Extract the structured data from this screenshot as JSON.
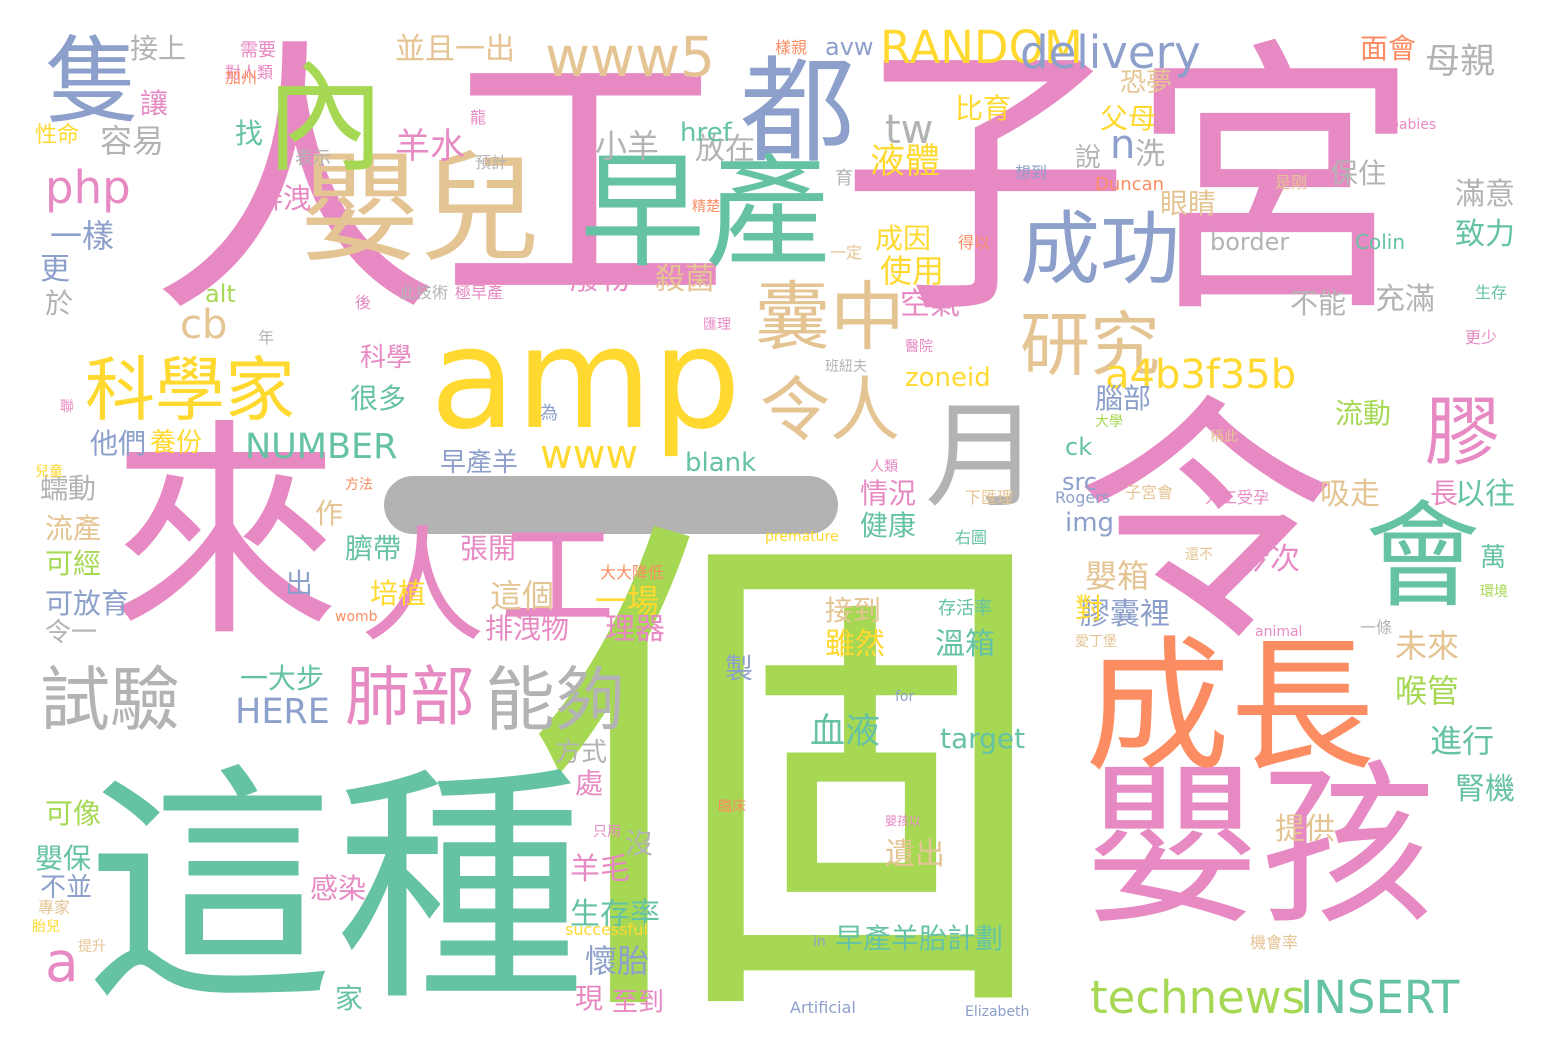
{
  "palette": {
    "pink": "#e78ac3",
    "green": "#a6d854",
    "teal": "#66c2a5",
    "yellow": "#ffd92f",
    "tan": "#e5c494",
    "orange": "#fc8d62",
    "blue": "#8da0cb",
    "gray": "#b3b3b3"
  },
  "dash_color": "#b3b3b3",
  "words": [
    {
      "text": "人工",
      "c": "pink"
    },
    {
      "text": "子宮",
      "c": "pink"
    },
    {
      "text": "來",
      "c": "pink"
    },
    {
      "text": "令",
      "c": "pink"
    },
    {
      "text": "個",
      "c": "green"
    },
    {
      "text": "這種",
      "c": "teal"
    },
    {
      "text": "嬰孩",
      "c": "pink"
    },
    {
      "text": "成長",
      "c": "orange"
    },
    {
      "text": "早產",
      "c": "teal"
    },
    {
      "text": "嬰兒",
      "c": "tan"
    },
    {
      "text": "amp",
      "c": "yellow"
    },
    {
      "text": "內",
      "c": "green"
    },
    {
      "text": "都",
      "c": "blue"
    },
    {
      "text": "隻",
      "c": "blue"
    },
    {
      "text": "人",
      "c": "pink"
    },
    {
      "text": "工",
      "c": "pink"
    },
    {
      "text": "月",
      "c": "gray"
    },
    {
      "text": "會",
      "c": "teal"
    },
    {
      "text": "科學家",
      "c": "yellow"
    },
    {
      "text": "令人",
      "c": "tan"
    },
    {
      "text": "囊中",
      "c": "tan"
    },
    {
      "text": "成功",
      "c": "blue"
    },
    {
      "text": "研究",
      "c": "tan"
    },
    {
      "text": "膠",
      "c": "pink"
    },
    {
      "text": "試驗",
      "c": "gray"
    },
    {
      "text": "肺部",
      "c": "pink"
    },
    {
      "text": "能夠",
      "c": "gray"
    },
    {
      "text": "www5",
      "c": "tan"
    },
    {
      "text": "RANDOM",
      "c": "yellow"
    },
    {
      "text": "delivery",
      "c": "blue"
    },
    {
      "text": "a4b3f35b",
      "c": "yellow"
    },
    {
      "text": "technews",
      "c": "green"
    },
    {
      "text": "INSERT",
      "c": "teal"
    },
    {
      "text": "www",
      "c": "yellow"
    },
    {
      "text": "NUMBER",
      "c": "teal"
    },
    {
      "text": "php",
      "c": "pink"
    },
    {
      "text": "cb",
      "c": "tan"
    },
    {
      "text": "tw",
      "c": "gray"
    },
    {
      "text": "n",
      "c": "blue"
    },
    {
      "text": "a",
      "c": "pink"
    },
    {
      "text": "HERE",
      "c": "blue"
    },
    {
      "text": "母親",
      "c": "gray"
    },
    {
      "text": "液體",
      "c": "yellow"
    },
    {
      "text": "羊水",
      "c": "pink"
    },
    {
      "text": "小羊",
      "c": "gray"
    },
    {
      "text": "容易",
      "c": "gray"
    },
    {
      "text": "一樣",
      "c": "blue"
    },
    {
      "text": "使用",
      "c": "yellow"
    },
    {
      "text": "空氣",
      "c": "pink"
    },
    {
      "text": "廢物",
      "c": "pink"
    },
    {
      "text": "殺菌",
      "c": "tan"
    },
    {
      "text": "放在",
      "c": "gray"
    },
    {
      "text": "成因",
      "c": "yellow"
    },
    {
      "text": "嬰箱",
      "c": "tan"
    },
    {
      "text": "膠囊裡",
      "c": "blue"
    },
    {
      "text": "未來",
      "c": "tan"
    },
    {
      "text": "喉管",
      "c": "green"
    },
    {
      "text": "進行",
      "c": "teal"
    },
    {
      "text": "這個",
      "c": "tan"
    },
    {
      "text": "一場",
      "c": "yellow"
    },
    {
      "text": "理器",
      "c": "pink"
    },
    {
      "text": "排洩物",
      "c": "pink"
    },
    {
      "text": "血液",
      "c": "teal"
    },
    {
      "text": "溫箱",
      "c": "teal"
    },
    {
      "text": "雖然",
      "c": "yellow"
    },
    {
      "text": "接到",
      "c": "tan"
    },
    {
      "text": "懷胎",
      "c": "blue"
    },
    {
      "text": "生存率",
      "c": "teal"
    },
    {
      "text": "羊毛",
      "c": "pink"
    },
    {
      "text": "早產羊胎計劃",
      "c": "teal"
    },
    {
      "text": "遺出",
      "c": "tan"
    },
    {
      "text": "提供",
      "c": "tan"
    },
    {
      "text": "腎機",
      "c": "teal"
    },
    {
      "text": "吸走",
      "c": "tan"
    },
    {
      "text": "保住",
      "c": "gray"
    },
    {
      "text": "充滿",
      "c": "gray"
    },
    {
      "text": "不能",
      "c": "gray"
    },
    {
      "text": "滿意",
      "c": "gray"
    },
    {
      "text": "致力",
      "c": "teal"
    },
    {
      "text": "今次",
      "c": "pink"
    },
    {
      "text": "以往",
      "c": "teal"
    },
    {
      "text": "流動",
      "c": "green"
    },
    {
      "text": "腦部",
      "c": "blue"
    },
    {
      "text": "眼睛",
      "c": "tan"
    },
    {
      "text": "父母",
      "c": "yellow"
    },
    {
      "text": "比育",
      "c": "yellow"
    },
    {
      "text": "恐夢",
      "c": "tan"
    },
    {
      "text": "面會",
      "c": "orange"
    },
    {
      "text": "洗",
      "c": "gray"
    },
    {
      "text": "說",
      "c": "gray"
    },
    {
      "text": "並且一出",
      "c": "tan"
    },
    {
      "text": "接上",
      "c": "gray"
    },
    {
      "text": "讓",
      "c": "pink"
    },
    {
      "text": "找",
      "c": "teal"
    },
    {
      "text": "排洩",
      "c": "pink"
    },
    {
      "text": "更",
      "c": "blue"
    },
    {
      "text": "於",
      "c": "gray"
    },
    {
      "text": "他們",
      "c": "blue"
    },
    {
      "text": "養份",
      "c": "yellow"
    },
    {
      "text": "蠕動",
      "c": "gray"
    },
    {
      "text": "流產",
      "c": "tan"
    },
    {
      "text": "可經",
      "c": "green"
    },
    {
      "text": "可放育",
      "c": "blue"
    },
    {
      "text": "令一",
      "c": "gray"
    },
    {
      "text": "可像",
      "c": "green"
    },
    {
      "text": "嬰保",
      "c": "teal"
    },
    {
      "text": "不並",
      "c": "blue"
    },
    {
      "text": "張開",
      "c": "pink"
    },
    {
      "text": "培植",
      "c": "yellow"
    },
    {
      "text": "臍帶",
      "c": "teal"
    },
    {
      "text": "科學",
      "c": "pink"
    },
    {
      "text": "很多",
      "c": "teal"
    },
    {
      "text": "一大步",
      "c": "teal"
    },
    {
      "text": "早產羊",
      "c": "blue"
    },
    {
      "text": "情況",
      "c": "pink"
    },
    {
      "text": "健康",
      "c": "teal"
    },
    {
      "text": "方式",
      "c": "gray"
    },
    {
      "text": "處",
      "c": "pink"
    },
    {
      "text": "沒",
      "c": "gray"
    },
    {
      "text": "現",
      "c": "pink"
    },
    {
      "text": "至到",
      "c": "pink"
    },
    {
      "text": "家",
      "c": "teal"
    },
    {
      "text": "感染",
      "c": "pink"
    },
    {
      "text": "製",
      "c": "blue"
    },
    {
      "text": "出",
      "c": "blue"
    },
    {
      "text": "作",
      "c": "tan"
    },
    {
      "text": "萬",
      "c": "teal"
    },
    {
      "text": "長",
      "c": "pink"
    },
    {
      "text": "對",
      "c": "yellow"
    },
    {
      "text": "target",
      "c": "teal"
    },
    {
      "text": "zoneid",
      "c": "yellow"
    },
    {
      "text": "blank",
      "c": "teal"
    },
    {
      "text": "img",
      "c": "blue"
    },
    {
      "text": "src",
      "c": "blue"
    },
    {
      "text": "ck",
      "c": "teal"
    },
    {
      "text": "href",
      "c": "teal"
    },
    {
      "text": "border",
      "c": "gray"
    },
    {
      "text": "alt",
      "c": "green"
    },
    {
      "text": "avw",
      "c": "blue"
    },
    {
      "text": "Colin",
      "c": "teal"
    },
    {
      "text": "Duncan",
      "c": "orange"
    },
    {
      "text": "Rogers",
      "c": "blue"
    },
    {
      "text": "Artificial",
      "c": "blue"
    },
    {
      "text": "Elizabeth",
      "c": "blue"
    },
    {
      "text": "successful",
      "c": "yellow"
    },
    {
      "text": "premature",
      "c": "yellow"
    },
    {
      "text": "womb",
      "c": "orange"
    },
    {
      "text": "animal",
      "c": "pink"
    },
    {
      "text": "babies",
      "c": "pink"
    },
    {
      "text": "for",
      "c": "blue"
    },
    {
      "text": "in",
      "c": "blue"
    },
    {
      "text": "需要",
      "c": "pink"
    },
    {
      "text": "對人類",
      "c": "pink"
    },
    {
      "text": "加州",
      "c": "orange"
    },
    {
      "text": "性命",
      "c": "yellow"
    },
    {
      "text": "表示",
      "c": "gray"
    },
    {
      "text": "預計",
      "c": "gray"
    },
    {
      "text": "龍",
      "c": "pink"
    },
    {
      "text": "育",
      "c": "gray"
    },
    {
      "text": "一定",
      "c": "tan"
    },
    {
      "text": "想到",
      "c": "blue"
    },
    {
      "text": "左圖",
      "c": "pink"
    },
    {
      "text": "生存",
      "c": "teal"
    },
    {
      "text": "更少",
      "c": "pink"
    },
    {
      "text": "是剛",
      "c": "tan"
    },
    {
      "text": "後",
      "c": "pink"
    },
    {
      "text": "年",
      "c": "gray"
    },
    {
      "text": "此技術",
      "c": "gray"
    },
    {
      "text": "極早產",
      "c": "pink"
    },
    {
      "text": "得以",
      "c": "orange"
    },
    {
      "text": "醫院",
      "c": "pink"
    },
    {
      "text": "匯理",
      "c": "pink"
    },
    {
      "text": "班紐夫",
      "c": "gray"
    },
    {
      "text": "為",
      "c": "blue"
    },
    {
      "text": "大學",
      "c": "green"
    },
    {
      "text": "稱此",
      "c": "tan"
    },
    {
      "text": "人類",
      "c": "pink"
    },
    {
      "text": "下匯理",
      "c": "tan"
    },
    {
      "text": "右圖",
      "c": "teal"
    },
    {
      "text": "子宮會",
      "c": "tan"
    },
    {
      "text": "人工受孕",
      "c": "pink"
    },
    {
      "text": "還不",
      "c": "tan"
    },
    {
      "text": "環境",
      "c": "green"
    },
    {
      "text": "一條",
      "c": "gray"
    },
    {
      "text": "愛丁堡",
      "c": "tan"
    },
    {
      "text": "存活率",
      "c": "teal"
    },
    {
      "text": "大大降低",
      "c": "orange"
    },
    {
      "text": "臨床",
      "c": "orange"
    },
    {
      "text": "嬰孩以",
      "c": "pink"
    },
    {
      "text": "只用",
      "c": "pink"
    },
    {
      "text": "機會率",
      "c": "tan"
    },
    {
      "text": "提升",
      "c": "tan"
    },
    {
      "text": "胎兒",
      "c": "yellow"
    },
    {
      "text": "專家",
      "c": "tan"
    },
    {
      "text": "兒童",
      "c": "yellow"
    },
    {
      "text": "方法",
      "c": "orange"
    },
    {
      "text": "聯",
      "c": "pink"
    },
    {
      "text": "樣親",
      "c": "orange"
    },
    {
      "text": "精楚",
      "c": "orange"
    }
  ]
}
